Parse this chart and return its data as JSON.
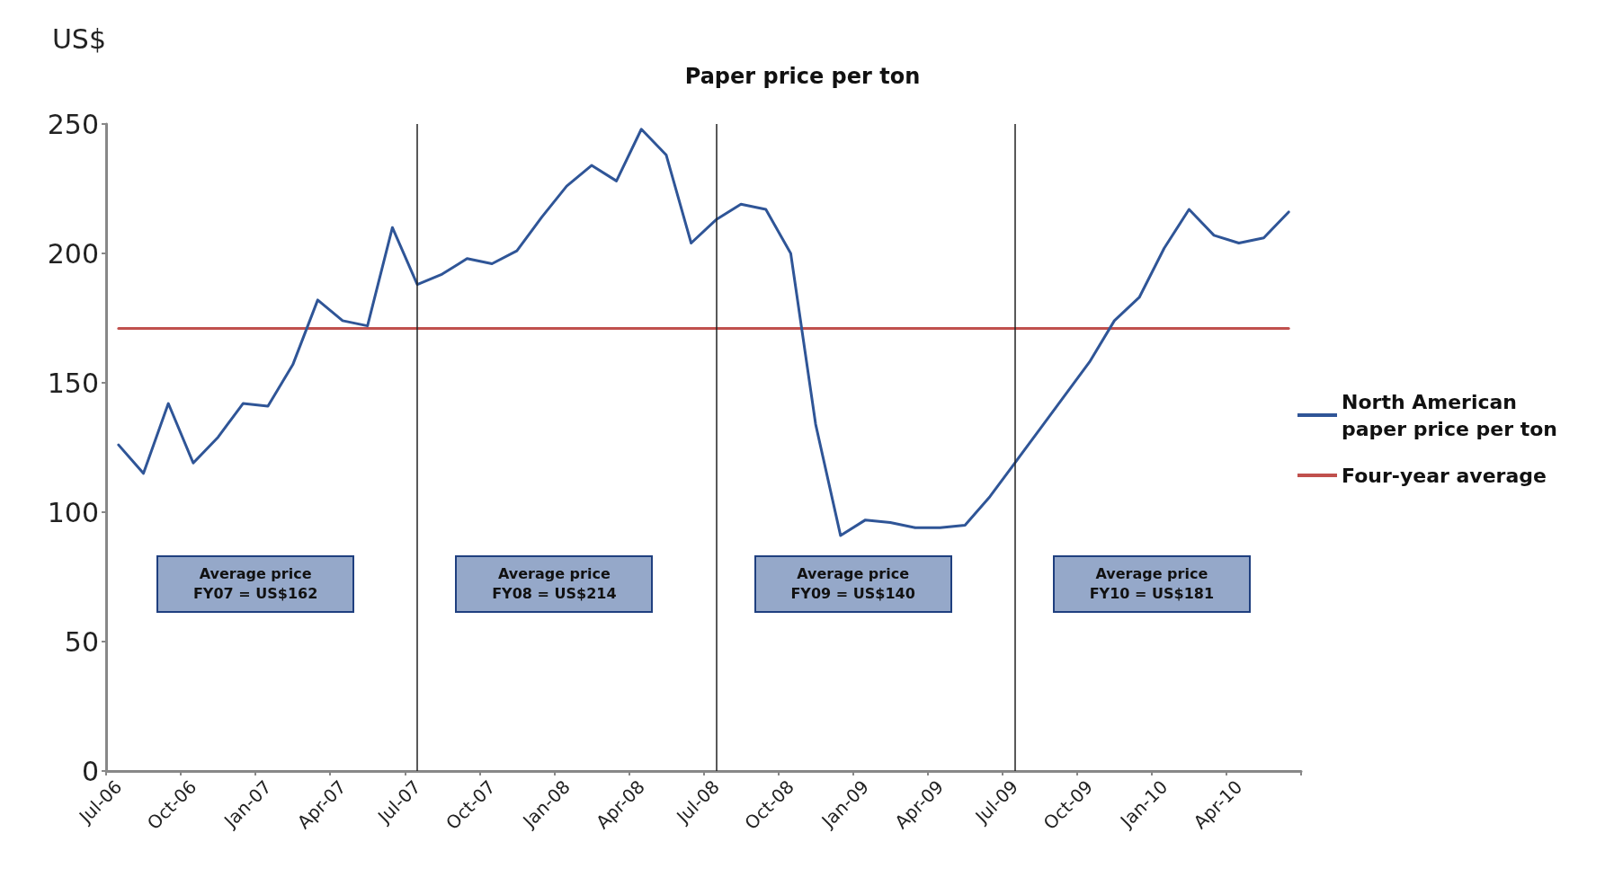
{
  "chart_data": {
    "type": "line",
    "title": "Paper price per ton",
    "ylabel": "US$",
    "categories": [
      "Jul-06",
      null,
      null,
      "Oct-06",
      null,
      null,
      "Jan-07",
      null,
      null,
      "Apr-07",
      null,
      null,
      "Jul-07",
      null,
      null,
      "Oct-07",
      null,
      null,
      "Jan-08",
      null,
      null,
      "Apr-08",
      null,
      null,
      "Jul-08",
      null,
      null,
      "Oct-08",
      null,
      null,
      "Jan-09",
      null,
      null,
      "Apr-09",
      null,
      null,
      "Jul-09",
      null,
      null,
      "Oct-09",
      null,
      null,
      "Jan-10",
      null,
      null,
      "Apr-10",
      null,
      null
    ],
    "series": [
      {
        "name": "North American paper price per ton",
        "color": "#2f5597",
        "values": [
          126,
          115,
          142,
          119,
          129,
          142,
          141,
          157,
          182,
          174,
          172,
          210,
          188,
          192,
          198,
          196,
          201,
          214,
          226,
          234,
          228,
          248,
          238,
          204,
          213,
          219,
          217,
          200,
          134,
          91,
          97,
          96,
          94,
          94,
          95,
          106,
          119,
          132,
          145,
          158,
          174,
          183,
          202,
          217,
          207,
          204,
          206,
          216
        ]
      },
      {
        "name": "Four-year average",
        "color": "#c0504d",
        "values": [
          171,
          171,
          171,
          171,
          171,
          171,
          171,
          171,
          171,
          171,
          171,
          171,
          171,
          171,
          171,
          171,
          171,
          171,
          171,
          171,
          171,
          171,
          171,
          171,
          171,
          171,
          171,
          171,
          171,
          171,
          171,
          171,
          171,
          171,
          171,
          171,
          171,
          171,
          171,
          171,
          171,
          171,
          171,
          171,
          171,
          171,
          171,
          171
        ]
      }
    ],
    "ylim": [
      0,
      250
    ],
    "yticks": [
      0,
      50,
      100,
      150,
      200,
      250
    ],
    "ref_lines": [
      {
        "axis": "x",
        "value": "Jul-07",
        "label": null,
        "color": "#222222"
      },
      {
        "axis": "x",
        "value": "Jul-08",
        "label": null,
        "color": "#222222"
      },
      {
        "axis": "x",
        "value": "Jul-09",
        "label": null,
        "color": "#222222"
      }
    ],
    "annotations": [
      "Average price\nFY07 = US$162",
      "Average price\nFY08 = US$214",
      "Average price\nFY09 = US$140",
      "Average price\nFY10 = US$181"
    ],
    "grid": false,
    "legend": "right",
    "marker": "none",
    "line_style": "solid"
  }
}
